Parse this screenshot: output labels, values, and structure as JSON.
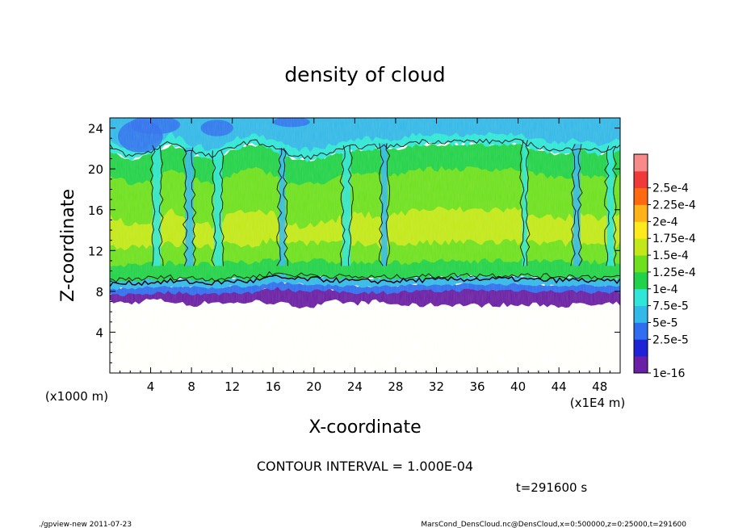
{
  "chart_data": {
    "type": "heatmap",
    "title": "density of cloud",
    "xlabel": "X-coordinate",
    "ylabel": "Z-coordinate",
    "x_unit_label": "(x1E4 m)",
    "y_unit_label": "(x1000 m)",
    "xlim": [
      0,
      50
    ],
    "ylim": [
      0,
      25
    ],
    "x_ticks": [
      "4",
      "8",
      "12",
      "16",
      "20",
      "24",
      "28",
      "32",
      "36",
      "40",
      "44",
      "48"
    ],
    "x_tick_values": [
      4,
      8,
      12,
      16,
      20,
      24,
      28,
      32,
      36,
      40,
      44,
      48
    ],
    "y_ticks": [
      "4",
      "8",
      "12",
      "16",
      "20",
      "24"
    ],
    "y_tick_values": [
      4,
      8,
      12,
      16,
      20,
      24
    ],
    "colorbar": {
      "levels": [
        "1e-16",
        "2.5e-5",
        "5e-5",
        "7.5e-5",
        "1e-4",
        "1.25e-4",
        "1.5e-4",
        "1.75e-4",
        "2e-4",
        "2.25e-4",
        "2.5e-4"
      ],
      "colors": [
        "#6a1fa6",
        "#1f23d6",
        "#2f6ef0",
        "#33b8ea",
        "#2fe6d8",
        "#22d24a",
        "#6ee020",
        "#c2e81a",
        "#ffea1e",
        "#ffb21a",
        "#ff6a10",
        "#f03a3a",
        "#f88a8a"
      ]
    },
    "contour_interval_text": "CONTOUR INTERVAL = 1.000E-04",
    "cloud_base_profile": {
      "x": [
        0,
        2,
        4,
        6,
        8,
        10,
        12,
        14,
        16,
        18,
        20,
        22,
        24,
        26,
        28,
        30,
        32,
        34,
        36,
        38,
        40,
        42,
        44,
        46,
        48,
        50
      ],
      "bottom_z": [
        7.0,
        6.8,
        7.2,
        7.0,
        6.6,
        7.0,
        6.8,
        7.0,
        6.9,
        6.6,
        6.5,
        7.0,
        6.8,
        7.0,
        6.7,
        6.6,
        6.7,
        6.7,
        6.6,
        6.7,
        6.6,
        6.7,
        6.6,
        6.7,
        6.6,
        6.8
      ],
      "dense_base_z": [
        8.5,
        8.6,
        8.7,
        8.8,
        8.7,
        8.6,
        8.8,
        8.8,
        9.2,
        9.0,
        9.0,
        8.9,
        8.8,
        8.8,
        8.8,
        8.9,
        8.9,
        9.0,
        9.0,
        9.0,
        9.0,
        8.9,
        8.9,
        8.9,
        8.8,
        8.8
      ],
      "top_z": [
        22.5,
        21.5,
        22.0,
        23.0,
        22.0,
        21.5,
        22.5,
        23.0,
        22.5,
        21.5,
        21.5,
        22.0,
        22.5,
        22.5,
        22.5,
        23.0,
        23.0,
        23.0,
        23.0,
        23.0,
        23.0,
        22.5,
        22.0,
        22.5,
        22.0,
        22.5
      ]
    }
  },
  "labels": {
    "time": "t=291600 s",
    "footer_left": "./gpview-new   2011-07-23",
    "footer_right": "MarsCond_DensCloud.nc@DensCloud,x=0:500000,z=0:25000,t=291600"
  }
}
